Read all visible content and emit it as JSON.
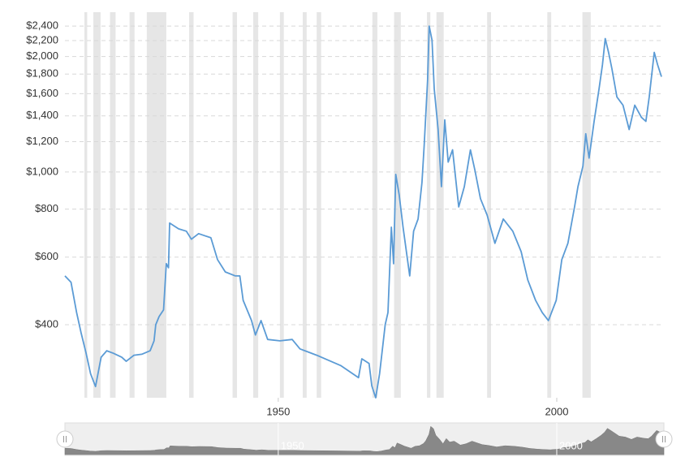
{
  "chart_data": {
    "type": "line",
    "x": [
      1911.7,
      1912.8,
      1913.8,
      1914.6,
      1915.5,
      1916.3,
      1917.2,
      1918.2,
      1919.2,
      1920.4,
      1921.9,
      1922.7,
      1924.1,
      1925.5,
      1927.0,
      1927.7,
      1928.0,
      1928.6,
      1929.4,
      1929.9,
      1930.3,
      1930.5,
      1932.1,
      1933.5,
      1934.4,
      1935.7,
      1937.9,
      1939.1,
      1940.5,
      1942.3,
      1943.1,
      1943.7,
      1945.2,
      1945.9,
      1946.9,
      1948.1,
      1950.3,
      1952.5,
      1953.9,
      1956.9,
      1961.2,
      1964.4,
      1965.0,
      1966.3,
      1966.8,
      1967.5,
      1968.2,
      1969.2,
      1969.7,
      1970.3,
      1970.7,
      1971.1,
      1971.7,
      1972.4,
      1973.6,
      1974.3,
      1975.1,
      1975.8,
      1976.2,
      1976.8,
      1977.1,
      1977.6,
      1978.0,
      1978.7,
      1979.3,
      1979.9,
      1980.5,
      1981.3,
      1982.4,
      1983.4,
      1984.5,
      1985.3,
      1986.3,
      1987.5,
      1988.9,
      1990.4,
      1992.1,
      1993.6,
      1994.8,
      1996.2,
      1997.4,
      1998.5,
      1999.9,
      2000.9,
      2002.0,
      2003.2,
      2003.8,
      2004.7,
      2005.2,
      2005.8,
      2006.7,
      2007.6,
      2008.2,
      2008.7,
      2009.3,
      2009.9,
      2010.8,
      2011.9,
      2013.0,
      2014.0,
      2015.2,
      2016.0,
      2016.6,
      2017.5,
      2018.1,
      2018.8
    ],
    "series": [
      {
        "color": "#5b9bd5",
        "values": [
          536,
          516,
          430,
          381,
          337,
          298,
          276,
          329,
          342,
          337,
          329,
          321,
          333,
          335,
          342,
          363,
          400,
          420,
          437,
          577,
          563,
          736,
          711,
          701,
          668,
          691,
          674,
          591,
          549,
          536,
          536,
          463,
          410,
          376,
          410,
          366,
          363,
          366,
          346,
          333,
          313,
          291,
          326,
          317,
          277,
          258,
          298,
          400,
          430,
          718,
          577,
          986,
          873,
          718,
          536,
          701,
          754,
          939,
          1170,
          1728,
          2400,
          2205,
          1647,
          1290,
          916,
          1367,
          1061,
          1142,
          811,
          916,
          1142,
          1011,
          852,
          772,
          652,
          754,
          701,
          620,
          523,
          463,
          430,
          410,
          463,
          591,
          652,
          811,
          916,
          1035,
          1258,
          1087,
          1355,
          1647,
          1905,
          2227,
          2050,
          1860,
          1568,
          1493,
          1290,
          1493,
          1388,
          1355,
          1568,
          2050,
          1905,
          1771
        ]
      }
    ],
    "recessions": [
      [
        1915.2,
        1915.7
      ],
      [
        1916.8,
        1918.1
      ],
      [
        1919.8,
        1920.8
      ],
      [
        1923.3,
        1924.2
      ],
      [
        1926.4,
        1929.9
      ],
      [
        1934.0,
        1934.8
      ],
      [
        1941.8,
        1942.6
      ],
      [
        1945.5,
        1946.4
      ],
      [
        1950.3,
        1951.0
      ],
      [
        1954.4,
        1955.1
      ],
      [
        1956.9,
        1957.7
      ],
      [
        1966.9,
        1967.8
      ],
      [
        1970.8,
        1972.0
      ],
      [
        1976.7,
        1977.3
      ],
      [
        1978.4,
        1979.7
      ],
      [
        1987.5,
        1988.2
      ],
      [
        1998.3,
        1999.0
      ],
      [
        2004.6,
        2006.1
      ]
    ],
    "xlim": [
      1911.7,
      2018.8
    ],
    "xticks": [
      1950,
      2000
    ],
    "ylim": [
      258,
      2485
    ],
    "log_scale": true,
    "grid": true,
    "yticks": [
      {
        "value": 400,
        "label": "$400"
      },
      {
        "value": 600,
        "label": "$600"
      },
      {
        "value": 800,
        "label": "$800"
      },
      {
        "value": 1000,
        "label": "$1,000"
      },
      {
        "value": 1200,
        "label": "$1,200"
      },
      {
        "value": 1400,
        "label": "$1,400"
      },
      {
        "value": 1600,
        "label": "$1,600"
      },
      {
        "value": 1800,
        "label": "$1,800"
      },
      {
        "value": 2000,
        "label": "$2,000"
      },
      {
        "value": 2200,
        "label": "$2,200"
      },
      {
        "value": 2400,
        "label": "$2,400"
      }
    ]
  }
}
